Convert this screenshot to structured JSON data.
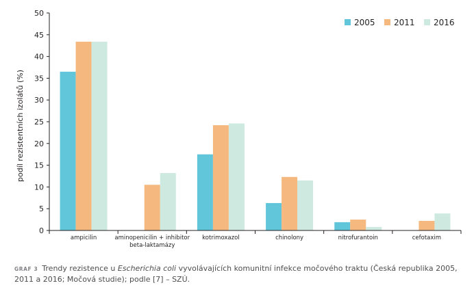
{
  "chart_data": {
    "type": "bar",
    "ylabel": "podíl rezistentních izolátů (%)",
    "ylim": [
      0,
      50
    ],
    "yticks": [
      0,
      5,
      10,
      15,
      20,
      25,
      30,
      35,
      40,
      45,
      50
    ],
    "categories": [
      [
        "ampicilin"
      ],
      [
        "aminopenicilin + inhibitor",
        "beta-laktamázy"
      ],
      [
        "kotrimoxazol"
      ],
      [
        "chinolony"
      ],
      [
        "nitrofurantoin"
      ],
      [
        "cefotaxim"
      ]
    ],
    "series": [
      {
        "name": "2005",
        "color": "#62c6da",
        "values": [
          36.5,
          0,
          17.5,
          6.3,
          1.9,
          0
        ]
      },
      {
        "name": "2011",
        "color": "#f5b87f",
        "values": [
          43.4,
          10.5,
          24.2,
          12.3,
          2.5,
          2.2
        ]
      },
      {
        "name": "2016",
        "color": "#cde9e0",
        "values": [
          43.4,
          13.2,
          24.6,
          11.5,
          0.8,
          3.9
        ]
      }
    ],
    "legend_position": "top-right",
    "grid": false
  },
  "caption": {
    "label": "GRAF 3",
    "text_before": "Trendy rezistence u ",
    "text_italic": "Escherichia coli",
    "text_after": " vyvolávajících komunitní infekce močového traktu (Česká republika 2005, 2011 a 2016; Močová studie); podle [7] – SZÚ."
  }
}
